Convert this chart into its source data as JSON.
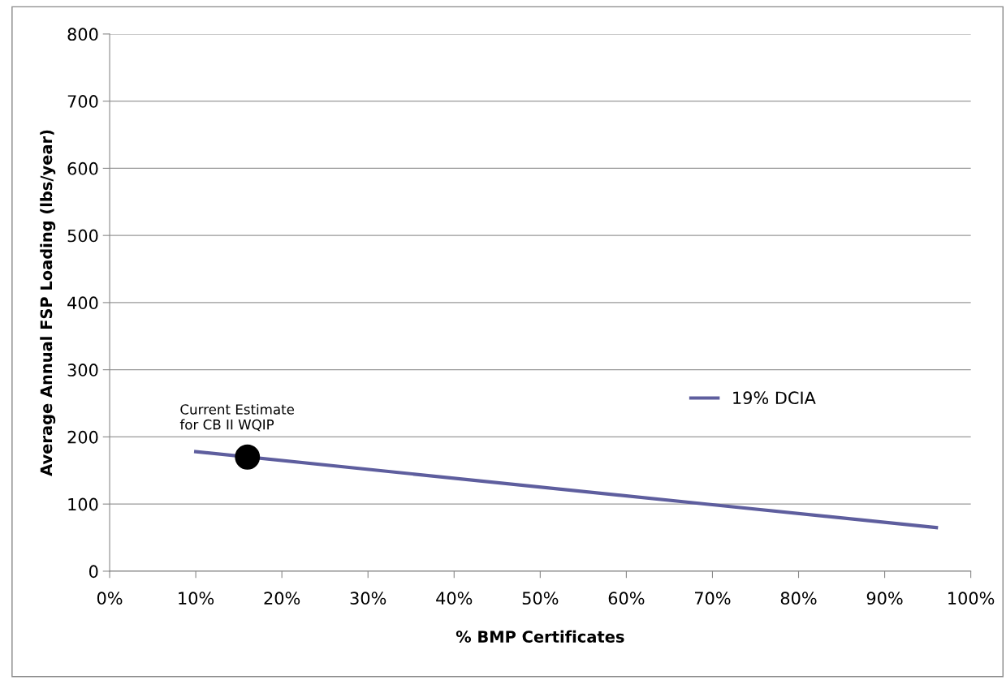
{
  "chart_data": {
    "type": "line",
    "xlabel": "% BMP Certificates",
    "ylabel": "Average Annual FSP Loading (lbs/year)",
    "series": [
      {
        "name": "19% DCIA",
        "color": "#5e5e9e",
        "x": [
          10,
          70,
          96
        ],
        "values": [
          178,
          99,
          65
        ]
      },
      {
        "type": "scatter",
        "color": "#000000",
        "x": [
          16
        ],
        "values": [
          170
        ],
        "marker": "circle"
      }
    ],
    "annotations": [
      {
        "text": "Current Estimate\nfor CB II WQIP",
        "x": 16,
        "y": 170
      }
    ],
    "xlim": [
      0,
      100
    ],
    "xticks": [
      {
        "value": 0,
        "label": "0%"
      },
      {
        "value": 10,
        "label": "10%"
      },
      {
        "value": 20,
        "label": "20%"
      },
      {
        "value": 30,
        "label": "30%"
      },
      {
        "value": 40,
        "label": "40%"
      },
      {
        "value": 50,
        "label": "50%"
      },
      {
        "value": 60,
        "label": "60%"
      },
      {
        "value": 70,
        "label": "70%"
      },
      {
        "value": 80,
        "label": "80%"
      },
      {
        "value": 90,
        "label": "90%"
      },
      {
        "value": 100,
        "label": "100%"
      }
    ],
    "ylim": [
      0,
      800
    ],
    "yticks": [
      0,
      100,
      200,
      300,
      400,
      500,
      600,
      700,
      800
    ],
    "grid": "y",
    "legend": "right",
    "marker": "none",
    "line_style": "solid"
  }
}
